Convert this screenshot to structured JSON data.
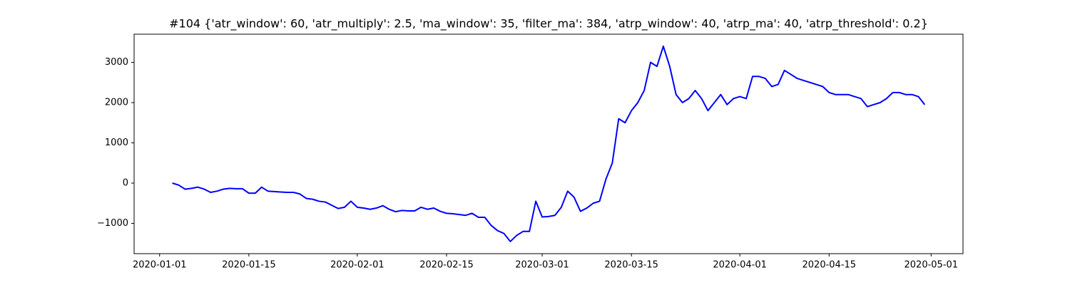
{
  "chart_data": {
    "type": "line",
    "title": "#104 {'atr_window': 60, 'atr_multiply': 2.5, 'ma_window': 35, 'filter_ma': 384, 'atrp_window': 40, 'atrp_ma': 40, 'atrp_threshold': 0.2}",
    "x": [
      "2020-01-03",
      "2020-01-04",
      "2020-01-05",
      "2020-01-06",
      "2020-01-07",
      "2020-01-08",
      "2020-01-09",
      "2020-01-10",
      "2020-01-11",
      "2020-01-12",
      "2020-01-13",
      "2020-01-14",
      "2020-01-15",
      "2020-01-16",
      "2020-01-17",
      "2020-01-18",
      "2020-01-19",
      "2020-01-20",
      "2020-01-21",
      "2020-01-22",
      "2020-01-23",
      "2020-01-24",
      "2020-01-25",
      "2020-01-26",
      "2020-01-27",
      "2020-01-28",
      "2020-01-29",
      "2020-01-30",
      "2020-01-31",
      "2020-02-01",
      "2020-02-02",
      "2020-02-03",
      "2020-02-04",
      "2020-02-05",
      "2020-02-06",
      "2020-02-07",
      "2020-02-08",
      "2020-02-09",
      "2020-02-10",
      "2020-02-11",
      "2020-02-12",
      "2020-02-13",
      "2020-02-14",
      "2020-02-15",
      "2020-02-16",
      "2020-02-17",
      "2020-02-18",
      "2020-02-19",
      "2020-02-20",
      "2020-02-21",
      "2020-02-22",
      "2020-02-23",
      "2020-02-24",
      "2020-02-25",
      "2020-02-26",
      "2020-02-27",
      "2020-02-28",
      "2020-02-29",
      "2020-03-01",
      "2020-03-02",
      "2020-03-03",
      "2020-03-04",
      "2020-03-05",
      "2020-03-06",
      "2020-03-07",
      "2020-03-08",
      "2020-03-09",
      "2020-03-10",
      "2020-03-11",
      "2020-03-12",
      "2020-03-13",
      "2020-03-14",
      "2020-03-15",
      "2020-03-16",
      "2020-03-17",
      "2020-03-18",
      "2020-03-19",
      "2020-03-20",
      "2020-03-21",
      "2020-03-22",
      "2020-03-23",
      "2020-03-24",
      "2020-03-25",
      "2020-03-26",
      "2020-03-27",
      "2020-03-28",
      "2020-03-29",
      "2020-03-30",
      "2020-03-31",
      "2020-04-01",
      "2020-04-02",
      "2020-04-03",
      "2020-04-04",
      "2020-04-05",
      "2020-04-06",
      "2020-04-07",
      "2020-04-08",
      "2020-04-09",
      "2020-04-10",
      "2020-04-11",
      "2020-04-13",
      "2020-04-14",
      "2020-04-15",
      "2020-04-16",
      "2020-04-17",
      "2020-04-18",
      "2020-04-19",
      "2020-04-20",
      "2020-04-21",
      "2020-04-22",
      "2020-04-23",
      "2020-04-24",
      "2020-04-25",
      "2020-04-26",
      "2020-04-27",
      "2020-04-28",
      "2020-04-29",
      "2020-04-30"
    ],
    "series": [
      {
        "color": "#0000ff",
        "values": [
          0,
          -50,
          -150,
          -130,
          -100,
          -150,
          -230,
          -200,
          -150,
          -130,
          -140,
          -140,
          -250,
          -250,
          -100,
          -200,
          -210,
          -220,
          -230,
          -230,
          -270,
          -380,
          -400,
          -450,
          -470,
          -550,
          -630,
          -600,
          -450,
          -600,
          -620,
          -650,
          -620,
          -560,
          -650,
          -710,
          -680,
          -690,
          -690,
          -600,
          -650,
          -620,
          -700,
          -750,
          -760,
          -780,
          -800,
          -750,
          -850,
          -850,
          -1050,
          -1180,
          -1250,
          -1450,
          -1300,
          -1200,
          -1200,
          -450,
          -840,
          -830,
          -800,
          -600,
          -200,
          -350,
          -700,
          -620,
          -500,
          -450,
          100,
          500,
          1600,
          1500,
          1800,
          2000,
          2300,
          3000,
          2900,
          3400,
          2900,
          2200,
          2000,
          2100,
          2300,
          2100,
          1800,
          2000,
          2200,
          1950,
          2100,
          2150,
          2100,
          2650,
          2650,
          2600,
          2400,
          2450,
          2800,
          2700,
          2600,
          2550,
          2450,
          2400,
          2250,
          2200,
          2200,
          2200,
          2150,
          2100,
          1900,
          1950,
          2000,
          2100,
          2250,
          2250,
          2200,
          2200,
          2150,
          1950
        ]
      }
    ],
    "xlim": [
      "2019-12-28",
      "2020-05-06"
    ],
    "xticks": [
      "2020-01-01",
      "2020-01-15",
      "2020-02-01",
      "2020-02-15",
      "2020-03-01",
      "2020-03-15",
      "2020-04-01",
      "2020-04-15",
      "2020-05-01"
    ],
    "ylim": [
      -1752,
      3699
    ],
    "yticks": [
      {
        "value": -1000,
        "label": "−1000"
      },
      0,
      1000,
      2000,
      3000
    ],
    "grid": false
  }
}
